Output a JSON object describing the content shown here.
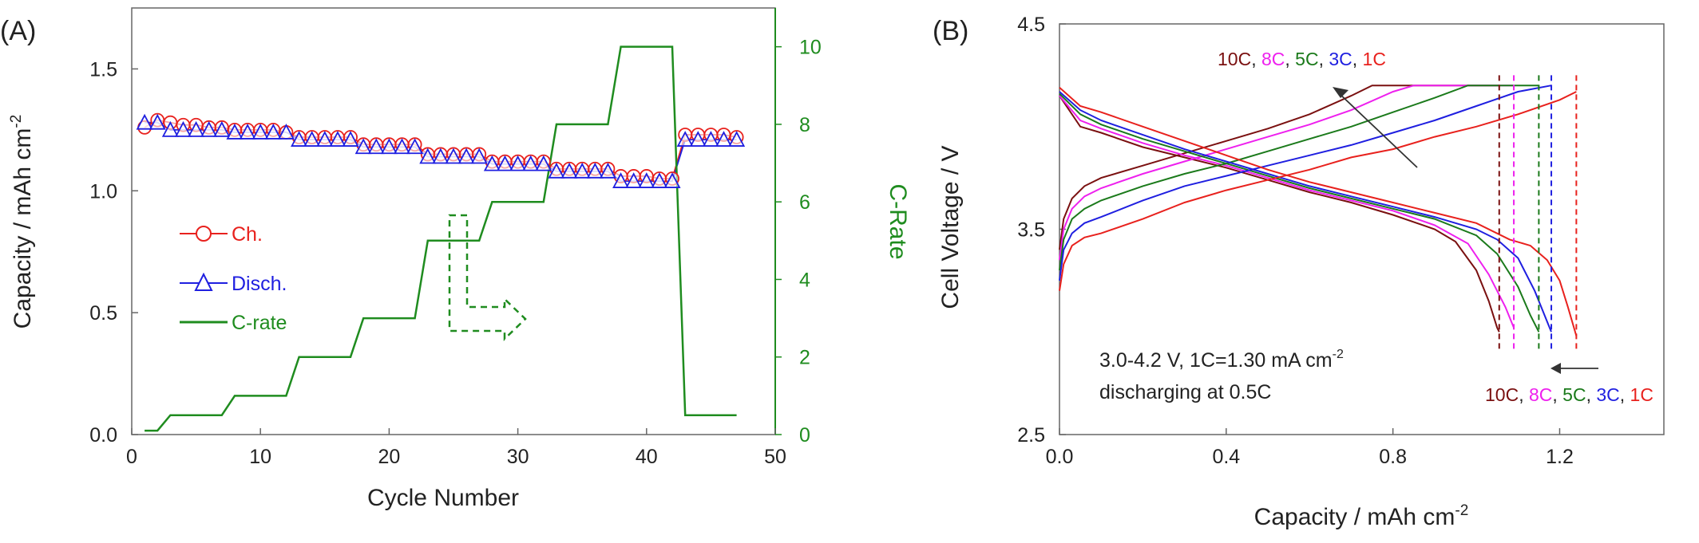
{
  "chart_data": [
    {
      "panel_label": "(A)",
      "type": "line",
      "xlabel": "Cycle Number",
      "ylabel_main": "Capacity / mAh cm",
      "ylabel_sup": "-2",
      "ylabel_right": "C-Rate",
      "xlim": [
        0,
        50
      ],
      "ylim_left": [
        0,
        1.75
      ],
      "ylim_right": [
        0,
        11
      ],
      "x_ticks": [
        0,
        10,
        20,
        30,
        40,
        50
      ],
      "x_tick_labels": [
        "0",
        "10",
        "20",
        "30",
        "40",
        "50"
      ],
      "y_left_ticks": [
        0,
        0.5,
        1.0,
        1.5
      ],
      "y_left_tick_labels": [
        "0.0",
        "0.5",
        "1.0",
        "1.5"
      ],
      "y_right_ticks": [
        0,
        2,
        4,
        6,
        8,
        10
      ],
      "y_right_tick_labels": [
        "0",
        "2",
        "4",
        "6",
        "8",
        "10"
      ],
      "grid": false,
      "legend_position": "middle-left",
      "series": [
        {
          "name": "Ch.",
          "axis": "left",
          "marker": "circle",
          "color": "#e8211d",
          "x": [
            1,
            2,
            3,
            4,
            5,
            6,
            7,
            8,
            9,
            10,
            11,
            12,
            13,
            14,
            15,
            16,
            17,
            18,
            19,
            20,
            21,
            22,
            23,
            24,
            25,
            26,
            27,
            28,
            29,
            30,
            31,
            32,
            33,
            34,
            35,
            36,
            37,
            38,
            39,
            40,
            41,
            42,
            43,
            44,
            45,
            46,
            47
          ],
          "values": [
            1.26,
            1.29,
            1.28,
            1.27,
            1.27,
            1.26,
            1.26,
            1.25,
            1.25,
            1.25,
            1.25,
            1.24,
            1.22,
            1.22,
            1.22,
            1.22,
            1.22,
            1.19,
            1.19,
            1.19,
            1.19,
            1.19,
            1.15,
            1.15,
            1.15,
            1.15,
            1.15,
            1.12,
            1.12,
            1.12,
            1.12,
            1.12,
            1.09,
            1.09,
            1.09,
            1.09,
            1.09,
            1.06,
            1.06,
            1.06,
            1.05,
            1.05,
            1.23,
            1.23,
            1.23,
            1.23,
            1.22
          ]
        },
        {
          "name": "Disch.",
          "axis": "left",
          "marker": "triangle",
          "color": "#1f1fe0",
          "x": [
            1,
            2,
            3,
            4,
            5,
            6,
            7,
            8,
            9,
            10,
            11,
            12,
            13,
            14,
            15,
            16,
            17,
            18,
            19,
            20,
            21,
            22,
            23,
            24,
            25,
            26,
            27,
            28,
            29,
            30,
            31,
            32,
            33,
            34,
            35,
            36,
            37,
            38,
            39,
            40,
            41,
            42,
            43,
            44,
            45,
            46,
            47
          ],
          "values": [
            1.28,
            1.28,
            1.25,
            1.25,
            1.25,
            1.25,
            1.25,
            1.24,
            1.24,
            1.24,
            1.24,
            1.24,
            1.21,
            1.21,
            1.21,
            1.21,
            1.21,
            1.18,
            1.18,
            1.18,
            1.18,
            1.18,
            1.14,
            1.14,
            1.14,
            1.14,
            1.14,
            1.11,
            1.11,
            1.11,
            1.11,
            1.11,
            1.08,
            1.08,
            1.08,
            1.08,
            1.08,
            1.04,
            1.04,
            1.04,
            1.04,
            1.04,
            1.21,
            1.21,
            1.21,
            1.21,
            1.21
          ]
        },
        {
          "name": "C-rate",
          "axis": "right",
          "marker": "none",
          "color": "#1f8c1f",
          "x": [
            1,
            2,
            3,
            7,
            8,
            12,
            13,
            17,
            18,
            22,
            23,
            27,
            28,
            32,
            33,
            37,
            38,
            42,
            43,
            47
          ],
          "values": [
            0.1,
            0.1,
            0.5,
            0.5,
            1,
            1,
            2,
            2,
            3,
            3,
            5,
            5,
            6,
            6,
            8,
            8,
            10,
            10,
            0.5,
            0.5
          ]
        }
      ],
      "annotations": [
        {
          "type": "dashed-arrow",
          "direction": "right",
          "color": "#1f8c1f",
          "points_to": "C-Rate axis"
        }
      ]
    },
    {
      "panel_label": "(B)",
      "type": "line",
      "xlabel": "Capacity / mAh cm",
      "xlabel_sup": "-2",
      "ylabel": "Cell Voltage  /  V",
      "xlim": [
        0,
        1.45
      ],
      "ylim": [
        2.5,
        4.5
      ],
      "x_ticks": [
        0,
        0.4,
        0.8,
        1.2
      ],
      "x_tick_labels": [
        "0.0",
        "0.4",
        "0.8",
        "1.2"
      ],
      "y_ticks": [
        2.5,
        3.5,
        4.5
      ],
      "y_tick_labels": [
        "2.5",
        "3.5",
        "4.5"
      ],
      "grid": false,
      "note_line1_main": "3.0-4.2 V, 1C=1.30 mA cm",
      "note_line1_sup": "-2",
      "note_line2": "discharging at 0.5C",
      "labels_top": [
        {
          "text": "10C",
          "color": "#7a1010"
        },
        {
          "text": "8C",
          "color": "#ee20ee"
        },
        {
          "text": "5C",
          "color": "#1b7a1b"
        },
        {
          "text": "3C",
          "color": "#1f1fe0"
        },
        {
          "text": "1C",
          "color": "#e8211d"
        }
      ],
      "labels_bottom": [
        {
          "text": "10C",
          "color": "#7a1010"
        },
        {
          "text": "8C",
          "color": "#ee20ee"
        },
        {
          "text": "5C",
          "color": "#1b7a1b"
        },
        {
          "text": "3C",
          "color": "#1f1fe0"
        },
        {
          "text": "1C",
          "color": "#e8211d"
        }
      ],
      "separator": ", ",
      "separator_color": "#222222",
      "series": [
        {
          "name": "10C",
          "color": "#7a1010",
          "capacity": 1.055,
          "charge": {
            "x": [
              0,
              0.01,
              0.03,
              0.06,
              0.1,
              0.2,
              0.3,
              0.4,
              0.5,
              0.6,
              0.7,
              0.75,
              0.8,
              1.055
            ],
            "y": [
              3.4,
              3.55,
              3.65,
              3.71,
              3.75,
              3.81,
              3.87,
              3.93,
              3.99,
              4.06,
              4.15,
              4.2,
              4.2,
              4.2
            ]
          },
          "discharge": {
            "x": [
              0,
              0.05,
              0.1,
              0.2,
              0.3,
              0.4,
              0.5,
              0.6,
              0.7,
              0.8,
              0.9,
              0.95,
              1.0,
              1.03,
              1.05,
              1.055
            ],
            "y": [
              4.15,
              4.0,
              3.97,
              3.9,
              3.85,
              3.8,
              3.74,
              3.68,
              3.63,
              3.57,
              3.5,
              3.44,
              3.3,
              3.15,
              3.02,
              3.0
            ]
          }
        },
        {
          "name": "8C",
          "color": "#ee20ee",
          "capacity": 1.09,
          "charge": {
            "x": [
              0,
              0.01,
              0.03,
              0.06,
              0.1,
              0.2,
              0.3,
              0.4,
              0.5,
              0.6,
              0.7,
              0.8,
              0.85,
              1.09
            ],
            "y": [
              3.35,
              3.5,
              3.6,
              3.66,
              3.7,
              3.77,
              3.83,
              3.89,
              3.95,
              4.01,
              4.08,
              4.17,
              4.2,
              4.2
            ]
          },
          "discharge": {
            "x": [
              0,
              0.05,
              0.1,
              0.2,
              0.3,
              0.4,
              0.5,
              0.6,
              0.7,
              0.8,
              0.9,
              0.98,
              1.03,
              1.07,
              1.09
            ],
            "y": [
              4.15,
              4.03,
              3.99,
              3.92,
              3.86,
              3.81,
              3.75,
              3.69,
              3.64,
              3.59,
              3.52,
              3.43,
              3.28,
              3.12,
              3.02
            ]
          }
        },
        {
          "name": "5C",
          "color": "#1b7a1b",
          "capacity": 1.15,
          "charge": {
            "x": [
              0,
              0.01,
              0.03,
              0.06,
              0.1,
              0.2,
              0.3,
              0.4,
              0.5,
              0.6,
              0.7,
              0.8,
              0.9,
              0.98,
              1.15
            ],
            "y": [
              3.3,
              3.45,
              3.55,
              3.6,
              3.64,
              3.71,
              3.77,
              3.82,
              3.88,
              3.94,
              4.0,
              4.07,
              4.14,
              4.2,
              4.2
            ]
          },
          "discharge": {
            "x": [
              0,
              0.05,
              0.1,
              0.2,
              0.3,
              0.4,
              0.5,
              0.6,
              0.7,
              0.8,
              0.9,
              1.0,
              1.05,
              1.1,
              1.13,
              1.15
            ],
            "y": [
              4.16,
              4.06,
              4.01,
              3.94,
              3.88,
              3.82,
              3.76,
              3.7,
              3.65,
              3.6,
              3.55,
              3.47,
              3.38,
              3.22,
              3.08,
              3.0
            ]
          }
        },
        {
          "name": "3C",
          "color": "#1f1fe0",
          "capacity": 1.18,
          "charge": {
            "x": [
              0,
              0.01,
              0.03,
              0.06,
              0.1,
              0.2,
              0.3,
              0.4,
              0.5,
              0.6,
              0.7,
              0.8,
              0.9,
              1.0,
              1.1,
              1.18
            ],
            "y": [
              3.25,
              3.4,
              3.48,
              3.53,
              3.56,
              3.64,
              3.71,
              3.76,
              3.81,
              3.86,
              3.91,
              3.97,
              4.03,
              4.1,
              4.17,
              4.2
            ]
          },
          "discharge": {
            "x": [
              0,
              0.05,
              0.1,
              0.2,
              0.3,
              0.4,
              0.5,
              0.6,
              0.7,
              0.8,
              0.9,
              1.0,
              1.05,
              1.1,
              1.14,
              1.17,
              1.18
            ],
            "y": [
              4.17,
              4.08,
              4.03,
              3.96,
              3.89,
              3.83,
              3.77,
              3.71,
              3.66,
              3.61,
              3.56,
              3.5,
              3.45,
              3.36,
              3.2,
              3.05,
              3.0
            ]
          }
        },
        {
          "name": "1C",
          "color": "#e8211d",
          "capacity": 1.24,
          "charge": {
            "x": [
              0,
              0.01,
              0.03,
              0.06,
              0.1,
              0.2,
              0.3,
              0.4,
              0.5,
              0.6,
              0.7,
              0.8,
              0.9,
              1.0,
              1.1,
              1.2,
              1.24
            ],
            "y": [
              3.2,
              3.33,
              3.42,
              3.46,
              3.48,
              3.55,
              3.63,
              3.69,
              3.74,
              3.79,
              3.85,
              3.89,
              3.95,
              4.0,
              4.06,
              4.13,
              4.17
            ]
          },
          "discharge": {
            "x": [
              0,
              0.05,
              0.1,
              0.2,
              0.3,
              0.4,
              0.5,
              0.6,
              0.7,
              0.8,
              0.9,
              1.0,
              1.08,
              1.13,
              1.17,
              1.2,
              1.22,
              1.24
            ],
            "y": [
              4.19,
              4.1,
              4.07,
              4.0,
              3.93,
              3.86,
              3.79,
              3.73,
              3.68,
              3.63,
              3.58,
              3.53,
              3.45,
              3.42,
              3.35,
              3.25,
              3.12,
              2.98
            ]
          }
        }
      ]
    }
  ]
}
